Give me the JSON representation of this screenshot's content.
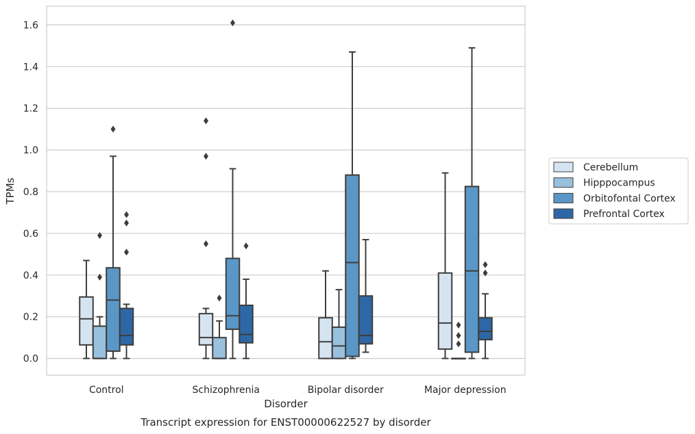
{
  "chart_data": {
    "type": "box",
    "title": "",
    "caption": "Transcript expression for ENST00000622527 by disorder",
    "xlabel": "Disorder",
    "ylabel": "TPMs",
    "ylim": [
      -0.08,
      1.69
    ],
    "yticks": [
      "0.0",
      "0.2",
      "0.4",
      "0.6",
      "0.8",
      "1.0",
      "1.2",
      "1.4",
      "1.6"
    ],
    "grid": true,
    "legend_position": "right",
    "categories": [
      "Control",
      "Schizophrenia",
      "Bipolar disorder",
      "Major depression"
    ],
    "series": [
      {
        "name": "Cerebellum",
        "color": "#d6e4f1",
        "boxes": [
          {
            "q1": 0.065,
            "median": 0.19,
            "q3": 0.295,
            "whisker_low": 0.0,
            "whisker_high": 0.47,
            "outliers": []
          },
          {
            "q1": 0.065,
            "median": 0.1,
            "q3": 0.215,
            "whisker_low": 0.0,
            "whisker_high": 0.24,
            "outliers": [
              0.55,
              0.97,
              1.14
            ]
          },
          {
            "q1": 0.0,
            "median": 0.08,
            "q3": 0.195,
            "whisker_low": 0.0,
            "whisker_high": 0.42,
            "outliers": []
          },
          {
            "q1": 0.045,
            "median": 0.17,
            "q3": 0.41,
            "whisker_low": 0.0,
            "whisker_high": 0.89,
            "outliers": []
          }
        ]
      },
      {
        "name": "Hipppocampus",
        "color": "#99c0dc",
        "boxes": [
          {
            "q1": 0.0,
            "median": 0.0,
            "q3": 0.155,
            "whisker_low": 0.0,
            "whisker_high": 0.2,
            "outliers": [
              0.39,
              0.59
            ]
          },
          {
            "q1": 0.0,
            "median": 0.0,
            "q3": 0.1,
            "whisker_low": 0.0,
            "whisker_high": 0.18,
            "outliers": [
              0.29
            ]
          },
          {
            "q1": 0.0,
            "median": 0.06,
            "q3": 0.15,
            "whisker_low": 0.0,
            "whisker_high": 0.33,
            "outliers": []
          },
          {
            "q1": 0.0,
            "median": 0.0,
            "q3": 0.0,
            "whisker_low": 0.0,
            "whisker_high": 0.0,
            "outliers": [
              0.07,
              0.11,
              0.16
            ]
          }
        ]
      },
      {
        "name": "Orbitofontal Cortex",
        "color": "#5b97c6",
        "boxes": [
          {
            "q1": 0.035,
            "median": 0.28,
            "q3": 0.435,
            "whisker_low": 0.0,
            "whisker_high": 0.97,
            "outliers": [
              1.1
            ]
          },
          {
            "q1": 0.14,
            "median": 0.205,
            "q3": 0.48,
            "whisker_low": 0.0,
            "whisker_high": 0.91,
            "outliers": [
              1.61
            ]
          },
          {
            "q1": 0.01,
            "median": 0.46,
            "q3": 0.88,
            "whisker_low": 0.0,
            "whisker_high": 1.47,
            "outliers": []
          },
          {
            "q1": 0.03,
            "median": 0.42,
            "q3": 0.825,
            "whisker_low": 0.0,
            "whisker_high": 1.49,
            "outliers": []
          }
        ]
      },
      {
        "name": "Prefrontal Cortex",
        "color": "#2e67a5",
        "boxes": [
          {
            "q1": 0.065,
            "median": 0.11,
            "q3": 0.24,
            "whisker_low": 0.0,
            "whisker_high": 0.26,
            "outliers": [
              0.51,
              0.65,
              0.69
            ]
          },
          {
            "q1": 0.075,
            "median": 0.115,
            "q3": 0.255,
            "whisker_low": 0.0,
            "whisker_high": 0.38,
            "outliers": [
              0.54
            ]
          },
          {
            "q1": 0.07,
            "median": 0.11,
            "q3": 0.3,
            "whisker_low": 0.03,
            "whisker_high": 0.57,
            "outliers": []
          },
          {
            "q1": 0.09,
            "median": 0.13,
            "q3": 0.195,
            "whisker_low": 0.0,
            "whisker_high": 0.31,
            "outliers": [
              0.41,
              0.45
            ]
          }
        ]
      }
    ]
  }
}
